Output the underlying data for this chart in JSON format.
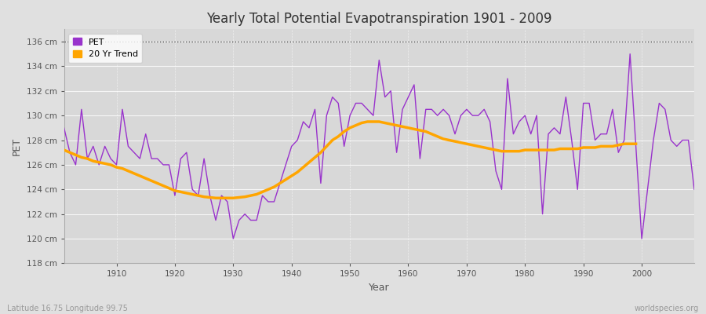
{
  "title": "Yearly Total Potential Evapotranspiration 1901 - 2009",
  "xlabel": "Year",
  "ylabel": "PET",
  "bottom_left": "Latitude 16.75 Longitude 99.75",
  "bottom_right": "worldspecies.org",
  "pet_color": "#9933CC",
  "trend_color": "#FFA500",
  "bg_color": "#E0E0E0",
  "plot_bg_color": "#D8D8D8",
  "legend_bg": "#FFFFFF",
  "ylim": [
    118,
    137
  ],
  "xlim": [
    1901,
    2009
  ],
  "yticks": [
    118,
    120,
    122,
    124,
    126,
    128,
    130,
    132,
    134,
    136
  ],
  "ytick_labels": [
    "118 cm",
    "120 cm",
    "122 cm",
    "124 cm",
    "126 cm",
    "128 cm",
    "130 cm",
    "132 cm",
    "134 cm",
    "136 cm"
  ],
  "years": [
    1901,
    1902,
    1903,
    1904,
    1905,
    1906,
    1907,
    1908,
    1909,
    1910,
    1911,
    1912,
    1913,
    1914,
    1915,
    1916,
    1917,
    1918,
    1919,
    1920,
    1921,
    1922,
    1923,
    1924,
    1925,
    1926,
    1927,
    1928,
    1929,
    1930,
    1931,
    1932,
    1933,
    1934,
    1935,
    1936,
    1937,
    1938,
    1939,
    1940,
    1941,
    1942,
    1943,
    1944,
    1945,
    1946,
    1947,
    1948,
    1949,
    1950,
    1951,
    1952,
    1953,
    1954,
    1955,
    1956,
    1957,
    1958,
    1959,
    1960,
    1961,
    1962,
    1963,
    1964,
    1965,
    1966,
    1967,
    1968,
    1969,
    1970,
    1971,
    1972,
    1973,
    1974,
    1975,
    1976,
    1977,
    1978,
    1979,
    1980,
    1981,
    1982,
    1983,
    1984,
    1985,
    1986,
    1987,
    1988,
    1989,
    1990,
    1991,
    1992,
    1993,
    1994,
    1995,
    1996,
    1997,
    1998,
    1999,
    2000,
    2001,
    2002,
    2003,
    2004,
    2005,
    2006,
    2007,
    2008,
    2009
  ],
  "pet": [
    129.0,
    127.0,
    126.0,
    130.5,
    126.5,
    127.5,
    126.0,
    127.5,
    126.5,
    126.0,
    130.5,
    127.5,
    127.0,
    126.5,
    128.5,
    126.5,
    126.5,
    126.0,
    126.0,
    123.5,
    126.5,
    127.0,
    124.0,
    123.5,
    126.5,
    123.5,
    121.5,
    123.5,
    123.0,
    120.0,
    121.5,
    122.0,
    121.5,
    121.5,
    123.5,
    123.0,
    123.0,
    124.5,
    126.0,
    127.5,
    128.0,
    129.5,
    129.0,
    130.5,
    124.5,
    130.0,
    131.5,
    131.0,
    127.5,
    130.0,
    131.0,
    131.0,
    130.5,
    130.0,
    134.5,
    131.5,
    132.0,
    127.0,
    130.5,
    131.5,
    132.5,
    126.5,
    130.5,
    130.5,
    130.0,
    130.5,
    130.0,
    128.5,
    130.0,
    130.5,
    130.0,
    130.0,
    130.5,
    129.5,
    125.5,
    124.0,
    133.0,
    128.5,
    129.5,
    130.0,
    128.5,
    130.0,
    122.0,
    128.5,
    129.0,
    128.5,
    131.5,
    128.0,
    124.0,
    131.0,
    131.0,
    128.0,
    128.5,
    128.5,
    130.5,
    127.0,
    128.0,
    135.0,
    127.5,
    120.0,
    124.0,
    128.0,
    131.0,
    130.5,
    128.0,
    127.5,
    128.0,
    128.0,
    124.0
  ],
  "trend": [
    127.2,
    127.0,
    126.8,
    126.6,
    126.5,
    126.3,
    126.2,
    126.1,
    126.0,
    125.8,
    125.7,
    125.5,
    125.3,
    125.1,
    124.9,
    124.7,
    124.5,
    124.3,
    124.1,
    123.9,
    123.8,
    123.7,
    123.6,
    123.5,
    123.4,
    123.35,
    123.3,
    123.3,
    123.3,
    123.3,
    123.35,
    123.4,
    123.5,
    123.6,
    123.8,
    124.0,
    124.2,
    124.5,
    124.8,
    125.1,
    125.4,
    125.8,
    126.2,
    126.6,
    127.0,
    127.5,
    128.0,
    128.3,
    128.7,
    129.0,
    129.2,
    129.4,
    129.5,
    129.5,
    129.5,
    129.4,
    129.3,
    129.2,
    129.1,
    129.0,
    128.9,
    128.8,
    128.7,
    128.5,
    128.3,
    128.1,
    128.0,
    127.9,
    127.8,
    127.7,
    127.6,
    127.5,
    127.4,
    127.3,
    127.2,
    127.1,
    127.1,
    127.1,
    127.1,
    127.2,
    127.2,
    127.2,
    127.2,
    127.2,
    127.2,
    127.3,
    127.3,
    127.3,
    127.3,
    127.4,
    127.4,
    127.4,
    127.5,
    127.5,
    127.5,
    127.6,
    127.7,
    127.7,
    127.7,
    null,
    null,
    null,
    null,
    null,
    null,
    null,
    null,
    null,
    null
  ]
}
